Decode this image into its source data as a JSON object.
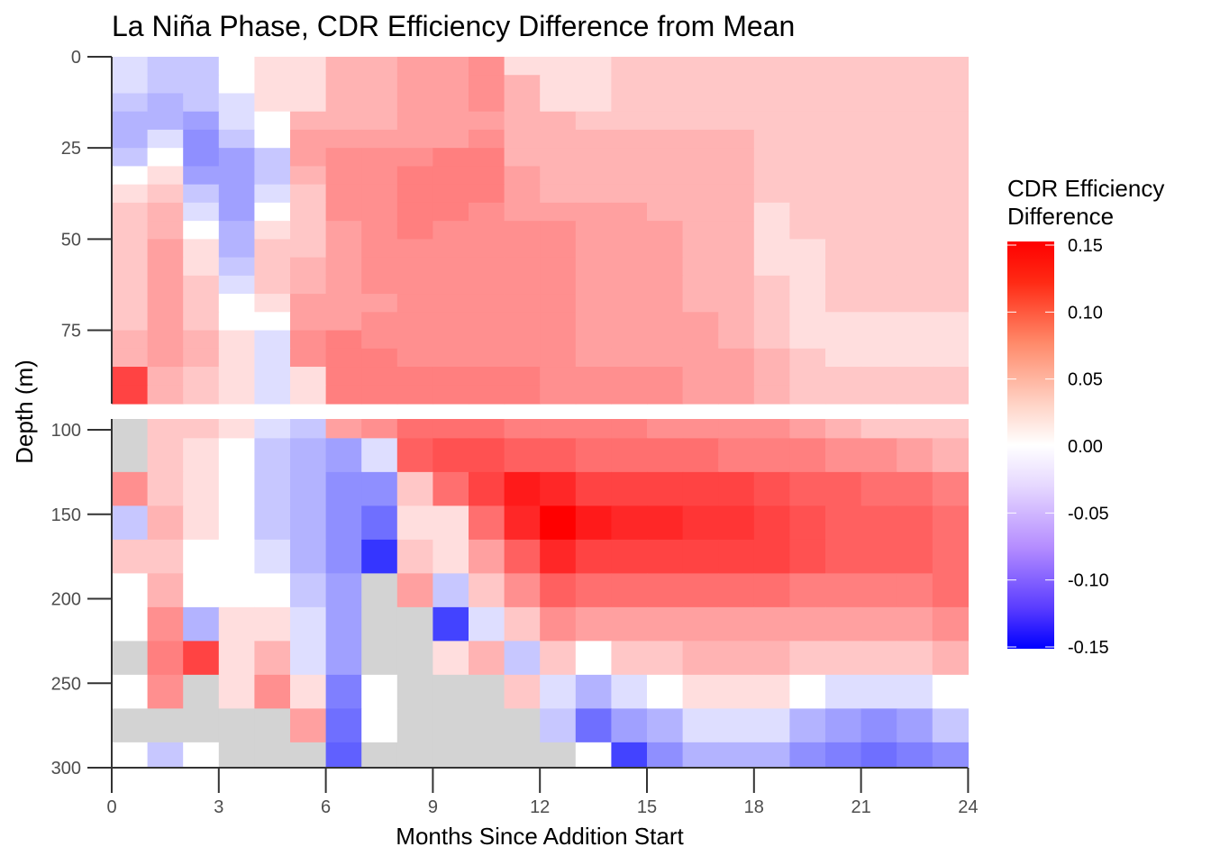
{
  "chart_data": {
    "type": "heatmap",
    "title": "La Niña Phase, CDR Efficiency Difference from Mean",
    "xlabel": "Months Since Addition Start",
    "ylabel": "Depth (m)",
    "xlim": [
      0,
      24
    ],
    "ylim": [
      0,
      300
    ],
    "x_ticks": [
      "0",
      "3",
      "6",
      "9",
      "12",
      "15",
      "18",
      "21",
      "24"
    ],
    "y_ticks": [
      "0",
      "25",
      "50",
      "75",
      "100",
      "150",
      "200",
      "250",
      "300"
    ],
    "legend": {
      "title_lines": [
        "CDR Efficiency",
        "Difference"
      ],
      "labels": [
        "0.15",
        "0.10",
        "0.05",
        "0.00",
        "-0.05",
        "-0.10",
        "-0.15"
      ],
      "range": [
        -0.15,
        0.15
      ],
      "color_low": "#0000ff",
      "color_mid": "#ffffff",
      "color_high": "#ff0000",
      "position": "right"
    },
    "na_color": "#d3d3d3",
    "x_months": [
      0,
      1,
      2,
      3,
      4,
      5,
      6,
      7,
      8,
      9,
      10,
      11,
      12,
      13,
      14,
      15,
      16,
      17,
      18,
      19,
      20,
      21,
      22,
      23
    ],
    "depth_bins_upper": [
      [
        0,
        5
      ],
      [
        5,
        10
      ],
      [
        10,
        15
      ],
      [
        15,
        20
      ],
      [
        20,
        25
      ],
      [
        25,
        30
      ],
      [
        30,
        35
      ],
      [
        35,
        40
      ],
      [
        40,
        45
      ],
      [
        45,
        50
      ],
      [
        50,
        55
      ],
      [
        55,
        60
      ],
      [
        60,
        65
      ],
      [
        65,
        70
      ],
      [
        70,
        75
      ],
      [
        75,
        80
      ],
      [
        80,
        85
      ],
      [
        85,
        90
      ],
      [
        90,
        95
      ]
    ],
    "depth_bins_lower": [
      [
        97,
        105
      ],
      [
        105,
        125
      ],
      [
        125,
        145
      ],
      [
        145,
        165
      ],
      [
        165,
        185
      ],
      [
        185,
        205
      ],
      [
        205,
        225
      ],
      [
        225,
        245
      ],
      [
        245,
        265
      ],
      [
        265,
        285
      ],
      [
        285,
        300
      ]
    ],
    "values_upper": [
      [
        -0.01,
        -0.02,
        -0.02,
        0.0,
        0.01,
        0.01,
        0.03,
        0.03,
        0.04,
        0.04,
        0.05,
        0.01,
        0.01,
        0.01,
        0.02,
        0.02,
        0.02,
        0.02,
        0.02,
        0.02,
        0.02,
        0.02,
        0.02,
        0.02
      ],
      [
        -0.01,
        -0.02,
        -0.02,
        0.0,
        0.01,
        0.01,
        0.03,
        0.03,
        0.04,
        0.04,
        0.05,
        0.03,
        0.01,
        0.01,
        0.02,
        0.02,
        0.02,
        0.02,
        0.02,
        0.02,
        0.02,
        0.02,
        0.02,
        0.02
      ],
      [
        -0.02,
        -0.03,
        -0.02,
        -0.01,
        0.01,
        0.01,
        0.03,
        0.03,
        0.04,
        0.04,
        0.05,
        0.03,
        0.01,
        0.01,
        0.02,
        0.02,
        0.02,
        0.02,
        0.02,
        0.02,
        0.02,
        0.02,
        0.02,
        0.02
      ],
      [
        -0.03,
        -0.03,
        -0.04,
        -0.01,
        0.0,
        0.03,
        0.03,
        0.03,
        0.04,
        0.04,
        0.04,
        0.03,
        0.03,
        0.02,
        0.02,
        0.02,
        0.02,
        0.02,
        0.02,
        0.02,
        0.02,
        0.02,
        0.02,
        0.02
      ],
      [
        -0.03,
        -0.01,
        -0.05,
        -0.02,
        0.0,
        0.04,
        0.04,
        0.04,
        0.04,
        0.04,
        0.05,
        0.03,
        0.03,
        0.03,
        0.03,
        0.03,
        0.03,
        0.03,
        0.02,
        0.02,
        0.02,
        0.02,
        0.02,
        0.02
      ],
      [
        -0.02,
        0.0,
        -0.05,
        -0.04,
        -0.02,
        0.04,
        0.05,
        0.05,
        0.05,
        0.06,
        0.06,
        0.03,
        0.03,
        0.03,
        0.03,
        0.03,
        0.03,
        0.03,
        0.02,
        0.02,
        0.02,
        0.02,
        0.02,
        0.02
      ],
      [
        0.0,
        0.01,
        -0.04,
        -0.04,
        -0.02,
        0.03,
        0.05,
        0.05,
        0.06,
        0.06,
        0.06,
        0.04,
        0.03,
        0.03,
        0.03,
        0.03,
        0.03,
        0.03,
        0.02,
        0.02,
        0.02,
        0.02,
        0.02,
        0.02
      ],
      [
        0.01,
        0.02,
        -0.02,
        -0.04,
        -0.01,
        0.02,
        0.05,
        0.05,
        0.06,
        0.06,
        0.06,
        0.04,
        0.03,
        0.03,
        0.03,
        0.03,
        0.03,
        0.03,
        0.02,
        0.02,
        0.02,
        0.02,
        0.02,
        0.02
      ],
      [
        0.02,
        0.03,
        -0.01,
        -0.04,
        0.0,
        0.02,
        0.05,
        0.05,
        0.06,
        0.06,
        0.05,
        0.04,
        0.04,
        0.04,
        0.04,
        0.03,
        0.03,
        0.03,
        0.01,
        0.02,
        0.02,
        0.02,
        0.02,
        0.02
      ],
      [
        0.02,
        0.03,
        0.0,
        -0.03,
        0.01,
        0.02,
        0.04,
        0.05,
        0.06,
        0.05,
        0.05,
        0.05,
        0.05,
        0.04,
        0.04,
        0.04,
        0.03,
        0.03,
        0.01,
        0.02,
        0.02,
        0.02,
        0.02,
        0.02
      ],
      [
        0.02,
        0.04,
        0.01,
        -0.03,
        0.02,
        0.02,
        0.04,
        0.05,
        0.05,
        0.05,
        0.05,
        0.05,
        0.05,
        0.04,
        0.04,
        0.04,
        0.03,
        0.03,
        0.01,
        0.01,
        0.02,
        0.02,
        0.02,
        0.02
      ],
      [
        0.02,
        0.04,
        0.01,
        -0.02,
        0.02,
        0.03,
        0.04,
        0.05,
        0.05,
        0.05,
        0.05,
        0.05,
        0.05,
        0.04,
        0.04,
        0.04,
        0.03,
        0.03,
        0.01,
        0.01,
        0.02,
        0.02,
        0.02,
        0.02
      ],
      [
        0.02,
        0.04,
        0.02,
        -0.01,
        0.02,
        0.03,
        0.04,
        0.05,
        0.05,
        0.05,
        0.05,
        0.05,
        0.05,
        0.04,
        0.04,
        0.04,
        0.03,
        0.03,
        0.02,
        0.01,
        0.02,
        0.02,
        0.02,
        0.02
      ],
      [
        0.02,
        0.04,
        0.02,
        0.0,
        0.01,
        0.04,
        0.04,
        0.04,
        0.05,
        0.05,
        0.05,
        0.05,
        0.05,
        0.04,
        0.04,
        0.04,
        0.03,
        0.03,
        0.02,
        0.01,
        0.02,
        0.02,
        0.02,
        0.02
      ],
      [
        0.02,
        0.04,
        0.02,
        0.0,
        0.0,
        0.04,
        0.04,
        0.05,
        0.05,
        0.05,
        0.05,
        0.05,
        0.05,
        0.04,
        0.04,
        0.04,
        0.04,
        0.03,
        0.02,
        0.01,
        0.01,
        0.01,
        0.01,
        0.01
      ],
      [
        0.03,
        0.04,
        0.03,
        0.01,
        -0.01,
        0.05,
        0.06,
        0.05,
        0.05,
        0.05,
        0.05,
        0.05,
        0.05,
        0.04,
        0.04,
        0.04,
        0.04,
        0.03,
        0.02,
        0.01,
        0.01,
        0.01,
        0.01,
        0.01
      ],
      [
        0.03,
        0.04,
        0.03,
        0.01,
        -0.01,
        0.05,
        0.06,
        0.06,
        0.05,
        0.05,
        0.05,
        0.05,
        0.05,
        0.04,
        0.04,
        0.04,
        0.04,
        0.04,
        0.03,
        0.02,
        0.01,
        0.01,
        0.01,
        0.01
      ],
      [
        0.1,
        0.03,
        0.02,
        0.01,
        -0.01,
        0.01,
        0.06,
        0.06,
        0.06,
        0.06,
        0.06,
        0.06,
        0.05,
        0.05,
        0.05,
        0.05,
        0.04,
        0.04,
        0.03,
        0.02,
        0.02,
        0.02,
        0.02,
        0.02
      ],
      [
        0.1,
        0.03,
        0.02,
        0.01,
        -0.01,
        0.01,
        0.06,
        0.06,
        0.06,
        0.06,
        0.06,
        0.06,
        0.05,
        0.05,
        0.05,
        0.05,
        0.04,
        0.04,
        0.03,
        0.02,
        0.02,
        0.02,
        0.02,
        0.02
      ]
    ],
    "values_lower": [
      [
        null,
        0.02,
        0.02,
        0.01,
        -0.01,
        -0.02,
        0.04,
        0.05,
        0.07,
        0.07,
        0.07,
        0.06,
        0.06,
        0.06,
        0.06,
        0.05,
        0.05,
        0.05,
        0.05,
        0.04,
        0.03,
        0.02,
        0.02,
        0.02
      ],
      [
        null,
        0.02,
        0.01,
        0.0,
        -0.02,
        -0.03,
        -0.04,
        -0.01,
        0.08,
        0.09,
        0.09,
        0.08,
        0.08,
        0.07,
        0.07,
        0.07,
        0.07,
        0.06,
        0.06,
        0.06,
        0.05,
        0.05,
        0.04,
        0.03
      ],
      [
        0.05,
        0.02,
        0.01,
        0.0,
        -0.02,
        -0.03,
        -0.05,
        -0.05,
        0.02,
        0.07,
        0.1,
        0.13,
        0.12,
        0.1,
        0.1,
        0.1,
        0.1,
        0.1,
        0.09,
        0.08,
        0.08,
        0.07,
        0.07,
        0.06
      ],
      [
        -0.02,
        0.03,
        0.01,
        0.0,
        -0.02,
        -0.03,
        -0.05,
        -0.07,
        0.01,
        0.01,
        0.07,
        0.12,
        0.15,
        0.13,
        0.12,
        0.12,
        0.11,
        0.11,
        0.1,
        0.09,
        0.08,
        0.08,
        0.08,
        0.07
      ],
      [
        0.02,
        0.02,
        0.0,
        0.0,
        -0.01,
        -0.03,
        -0.05,
        -0.11,
        0.02,
        0.01,
        0.04,
        0.08,
        0.12,
        0.1,
        0.1,
        0.1,
        0.1,
        0.1,
        0.1,
        0.09,
        0.08,
        0.08,
        0.08,
        0.07
      ],
      [
        0.0,
        0.03,
        0.0,
        0.0,
        0.0,
        -0.02,
        -0.04,
        null,
        0.04,
        -0.02,
        0.02,
        0.05,
        0.08,
        0.07,
        0.07,
        0.07,
        0.07,
        0.07,
        0.07,
        0.06,
        0.06,
        0.06,
        0.06,
        0.07
      ],
      [
        0.0,
        0.05,
        -0.03,
        0.01,
        0.01,
        -0.01,
        -0.04,
        null,
        null,
        -0.1,
        -0.01,
        0.02,
        0.05,
        0.04,
        0.04,
        0.04,
        0.04,
        0.04,
        0.04,
        0.04,
        0.04,
        0.04,
        0.04,
        0.05
      ],
      [
        null,
        0.06,
        0.1,
        0.01,
        0.03,
        -0.01,
        -0.04,
        null,
        null,
        0.01,
        0.03,
        -0.02,
        0.02,
        0.0,
        0.02,
        0.02,
        0.03,
        0.03,
        0.03,
        0.02,
        0.02,
        0.02,
        0.02,
        0.03
      ],
      [
        0.0,
        0.05,
        null,
        0.01,
        0.05,
        0.01,
        -0.06,
        0.0,
        null,
        null,
        null,
        0.02,
        -0.01,
        -0.03,
        -0.01,
        0.0,
        0.01,
        0.01,
        0.01,
        0.0,
        -0.01,
        -0.01,
        -0.01,
        0.0
      ],
      [
        null,
        null,
        null,
        null,
        null,
        0.04,
        -0.07,
        0.0,
        null,
        null,
        null,
        null,
        -0.02,
        -0.07,
        -0.04,
        -0.03,
        -0.01,
        -0.01,
        -0.01,
        -0.03,
        -0.04,
        -0.05,
        -0.04,
        -0.02
      ],
      [
        0.0,
        -0.02,
        0.0,
        null,
        null,
        null,
        -0.08,
        null,
        null,
        null,
        null,
        null,
        null,
        0.0,
        -0.1,
        -0.05,
        -0.03,
        -0.03,
        -0.03,
        -0.05,
        -0.06,
        -0.07,
        -0.06,
        -0.05
      ]
    ]
  }
}
